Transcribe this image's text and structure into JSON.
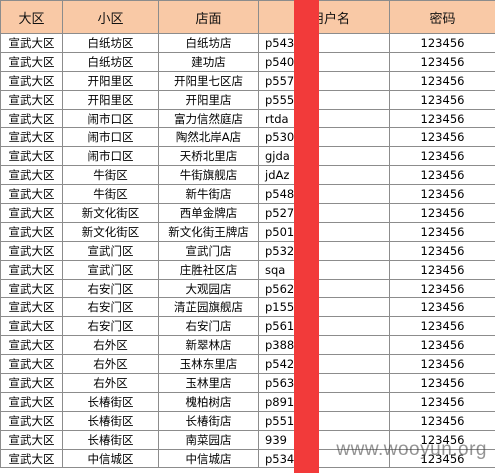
{
  "columns": [
    "大区",
    "小区",
    "店面",
    "店用户名",
    "密码"
  ],
  "rows": [
    [
      "宣武大区",
      "白纸坊区",
      "白纸坊店",
      "p543",
      "123456"
    ],
    [
      "宣武大区",
      "白纸坊区",
      "建功店",
      "p540",
      "123456"
    ],
    [
      "宣武大区",
      "开阳里区",
      "开阳里七区店",
      "p557",
      "123456"
    ],
    [
      "宣武大区",
      "开阳里区",
      "开阳里店",
      "p555",
      "123456"
    ],
    [
      "宣武大区",
      "闹市口区",
      "富力信然庭店",
      "rtda",
      "123456"
    ],
    [
      "宣武大区",
      "闹市口区",
      "陶然北岸A店",
      "p530",
      "123456"
    ],
    [
      "宣武大区",
      "闹市口区",
      "天桥北里店",
      "gjda",
      "123456"
    ],
    [
      "宣武大区",
      "牛街区",
      "牛街旗舰店",
      "jdAz",
      "123456"
    ],
    [
      "宣武大区",
      "牛街区",
      "新牛街店",
      "p548",
      "123456"
    ],
    [
      "宣武大区",
      "新文化街区",
      "西单金牌店",
      "p527",
      "123456"
    ],
    [
      "宣武大区",
      "新文化街区",
      "新文化街王牌店",
      "p5014",
      "123456"
    ],
    [
      "宣武大区",
      "宣武门区",
      "宣武门店",
      "p532",
      "123456"
    ],
    [
      "宣武大区",
      "宣武门区",
      "庄胜社区店",
      "sqa",
      "123456"
    ],
    [
      "宣武大区",
      "右安门区",
      "大观园店",
      "p562",
      "123456"
    ],
    [
      "宣武大区",
      "右安门区",
      "清芷园旗舰店",
      "p1554",
      "123456"
    ],
    [
      "宣武大区",
      "右安门区",
      "右安门店",
      "p561",
      "123456"
    ],
    [
      "宣武大区",
      "右外区",
      "新翠林店",
      "p3881",
      "123456"
    ],
    [
      "宣武大区",
      "右外区",
      "玉林东里店",
      "p542",
      "123456"
    ],
    [
      "宣武大区",
      "右外区",
      "玉林里店",
      "p563",
      "123456"
    ],
    [
      "宣武大区",
      "长椿街区",
      "槐柏树店",
      "p8918",
      "123456"
    ],
    [
      "宣武大区",
      "长椿街区",
      "长椿街店",
      "p551",
      "123456"
    ],
    [
      "宣武大区",
      "长椿街区",
      "南菜园店",
      "939",
      "123456"
    ],
    [
      "宣武大区",
      "中信城区",
      "中信城店",
      "p534",
      "123456"
    ]
  ],
  "watermark": "www.wooyun.org",
  "colors": {
    "header_bg": "#f9c9a6",
    "redaction": "#f23a3a",
    "grid": "#8c8c8c"
  }
}
